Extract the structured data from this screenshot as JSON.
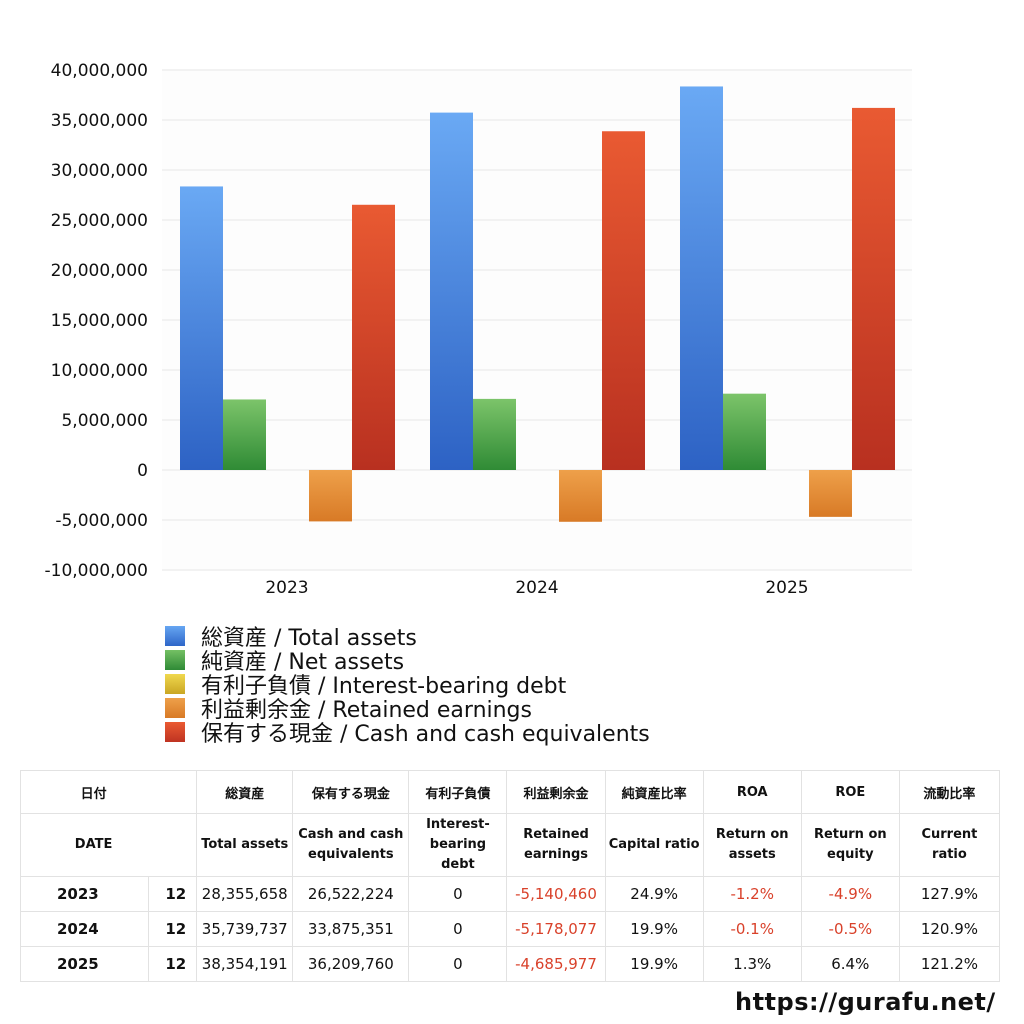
{
  "chart_data": {
    "type": "bar",
    "categories": [
      "2023",
      "2024",
      "2025"
    ],
    "ylim": [
      -10000000,
      40000000
    ],
    "yticks": [
      40000000,
      35000000,
      30000000,
      25000000,
      20000000,
      15000000,
      10000000,
      5000000,
      0,
      -5000000,
      -10000000
    ],
    "ytick_labels": [
      "40,000,000",
      "35,000,000",
      "30,000,000",
      "25,000,000",
      "20,000,000",
      "15,000,000",
      "10,000,000",
      "5,000,000",
      "0",
      "-5,000,000",
      "-10,000,000"
    ],
    "grid": true,
    "legend_position": "bottom",
    "series": [
      {
        "name": "総資産 / Total assets",
        "color": "#3b7fe0",
        "values": [
          28355658,
          35739737,
          38354191
        ]
      },
      {
        "name": "純資産 / Net assets",
        "color": "#46a23e",
        "values": [
          7054000,
          7112000,
          7633000
        ]
      },
      {
        "name": "有利子負債 / Interest-bearing debt",
        "color": "#e3c234",
        "values": [
          0,
          0,
          0
        ]
      },
      {
        "name": "利益剰余金 / Retained earnings",
        "color": "#e0862f",
        "values": [
          -5140460,
          -5178077,
          -4685977
        ]
      },
      {
        "name": "保有する現金 /  Cash and cash equivalents",
        "color": "#d8432a",
        "values": [
          26522224,
          33875351,
          36209760
        ]
      }
    ]
  },
  "table": {
    "headers_jp": [
      "日付",
      "総資産",
      "保有する現金",
      "有利子負債",
      "利益剰余金",
      "純資産比率",
      "ROA",
      "ROE",
      "流動比率"
    ],
    "headers_en": [
      "DATE",
      "Total assets",
      "Cash and cash\nequivalents",
      "Interest-\nbearing\ndebt",
      "Retained\nearnings",
      "Capital ratio",
      "Return on\nassets",
      "Return on\nequity",
      "Current\nratio"
    ],
    "rows": [
      {
        "year": "2023",
        "month": "12",
        "total_assets": "28,355,658",
        "cash": "26,522,224",
        "debt": "0",
        "retained": "-5,140,460",
        "capital_ratio": "24.9%",
        "roa": "-1.2%",
        "roe": "-4.9%",
        "current_ratio": "127.9%"
      },
      {
        "year": "2024",
        "month": "12",
        "total_assets": "35,739,737",
        "cash": "33,875,351",
        "debt": "0",
        "retained": "-5,178,077",
        "capital_ratio": "19.9%",
        "roa": "-0.1%",
        "roe": "-0.5%",
        "current_ratio": "120.9%"
      },
      {
        "year": "2025",
        "month": "12",
        "total_assets": "38,354,191",
        "cash": "36,209,760",
        "debt": "0",
        "retained": "-4,685,977",
        "capital_ratio": "19.9%",
        "roa": "1.3%",
        "roe": "6.4%",
        "current_ratio": "121.2%"
      }
    ]
  },
  "footer": {
    "url": "https://gurafu.net/"
  }
}
